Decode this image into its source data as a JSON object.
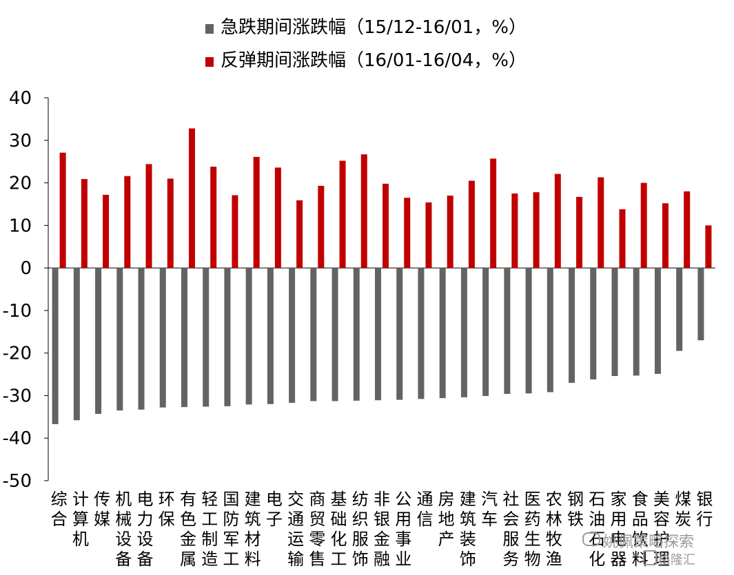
{
  "chart_data": {
    "type": "bar",
    "ylim": [
      -50,
      40
    ],
    "yticks": [
      40,
      30,
      20,
      10,
      0,
      -10,
      -20,
      -30,
      -40,
      -50
    ],
    "grid": false,
    "legend_position": "top-center",
    "categories": [
      "综合",
      "计算机",
      "传媒",
      "机械设备",
      "电力设备",
      "环保",
      "有色金属",
      "轻工制造",
      "国防军工",
      "建筑材料",
      "电子",
      "交通运输",
      "商贸零售",
      "基础化工",
      "纺织服饰",
      "非银金融",
      "公用事业",
      "通信",
      "房地产",
      "建筑装饰",
      "汽车",
      "社会服务",
      "医药生物",
      "农林牧渔",
      "钢铁",
      "石油石化",
      "家用电器",
      "食品饮料",
      "美容护理",
      "煤炭",
      "银行"
    ],
    "series": [
      {
        "name": "急跌期间涨跌幅（15/12-16/01，%）",
        "color": "#636363",
        "values": [
          -36.7,
          -35.8,
          -34.3,
          -33.5,
          -33.3,
          -32.8,
          -32.7,
          -32.6,
          -32.5,
          -32.1,
          -32.0,
          -31.7,
          -31.3,
          -31.3,
          -31.2,
          -31.1,
          -31.0,
          -30.8,
          -30.6,
          -30.4,
          -30.1,
          -29.6,
          -29.5,
          -29.2,
          -27.0,
          -26.2,
          -25.4,
          -25.3,
          -24.9,
          -19.5,
          -17.0
        ]
      },
      {
        "name": "反弹期间涨跌幅（16/01-16/04，%）",
        "color": "#c00000",
        "values": [
          27.1,
          20.9,
          17.2,
          21.6,
          24.4,
          21.0,
          32.8,
          23.8,
          17.1,
          26.1,
          23.6,
          15.9,
          19.3,
          25.2,
          26.7,
          19.8,
          16.5,
          15.4,
          17.0,
          20.5,
          25.7,
          17.5,
          17.8,
          22.1,
          16.7,
          21.3,
          13.8,
          20.0,
          15.2,
          18.0,
          10.0
        ]
      }
    ]
  },
  "watermark": {
    "line1": "姚佩策略探索",
    "line2": "格隆汇"
  }
}
